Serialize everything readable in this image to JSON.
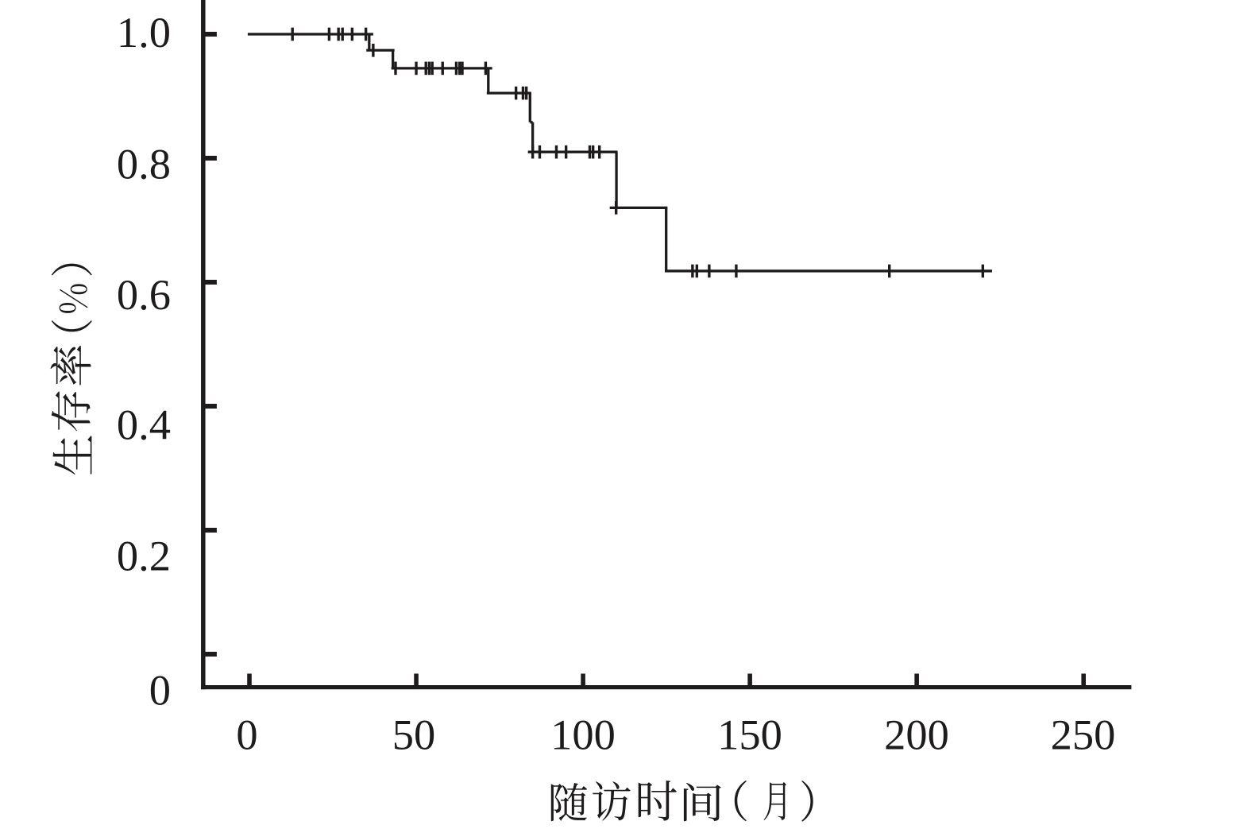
{
  "figure": {
    "background": "#ffffff",
    "ink_color": "#1e1b1c"
  },
  "chart_data": {
    "type": "line",
    "chart_style": "kaplan_meier_step_curve",
    "title": "",
    "xlabel": "随访时间（月）",
    "ylabel": "生存率（%）",
    "x_tick_labels": [
      "0",
      "50",
      "100",
      "150",
      "200",
      "250"
    ],
    "x_ticks": [
      0,
      50,
      100,
      150,
      200,
      250
    ],
    "y_tick_labels": [
      "0",
      "0.2",
      "0.4",
      "0.6",
      "0.8",
      "1.0"
    ],
    "y_ticks": [
      0,
      0.2,
      0.4,
      0.6,
      0.8,
      1.0
    ],
    "xlim": [
      -14.5,
      264.3
    ],
    "ylim": [
      -0.053,
      1.055
    ],
    "grid": false,
    "legend": null,
    "series": [
      {
        "name": "生存率",
        "steps": [
          {
            "t": 0.0,
            "s": 1.0
          },
          {
            "t": 35.9,
            "s": 0.974
          },
          {
            "t": 43.0,
            "s": 0.945
          },
          {
            "t": 71.6,
            "s": 0.905
          },
          {
            "t": 84.1,
            "s": 0.858
          },
          {
            "t": 84.9,
            "s": 0.81
          },
          {
            "t": 110.0,
            "s": 0.72
          },
          {
            "t": 124.9,
            "s": 0.618
          }
        ],
        "end_time": 222.0,
        "censors": [
          {
            "t": 12.9,
            "s": 1.0
          },
          {
            "t": 23.9,
            "s": 1.0
          },
          {
            "t": 26.7,
            "s": 1.0
          },
          {
            "t": 27.9,
            "s": 1.0
          },
          {
            "t": 30.8,
            "s": 1.0
          },
          {
            "t": 34.9,
            "s": 1.0
          },
          {
            "t": 37.1,
            "s": 0.974
          },
          {
            "t": 43.8,
            "s": 0.945
          },
          {
            "t": 50.0,
            "s": 0.945
          },
          {
            "t": 52.9,
            "s": 0.945
          },
          {
            "t": 53.9,
            "s": 0.945
          },
          {
            "t": 54.8,
            "s": 0.945
          },
          {
            "t": 57.9,
            "s": 0.945
          },
          {
            "t": 62.0,
            "s": 0.945
          },
          {
            "t": 63.0,
            "s": 0.945
          },
          {
            "t": 63.8,
            "s": 0.945
          },
          {
            "t": 70.8,
            "s": 0.945
          },
          {
            "t": 79.9,
            "s": 0.905
          },
          {
            "t": 82.0,
            "s": 0.905
          },
          {
            "t": 83.0,
            "s": 0.905
          },
          {
            "t": 84.9,
            "s": 0.81
          },
          {
            "t": 87.0,
            "s": 0.81
          },
          {
            "t": 92.0,
            "s": 0.81
          },
          {
            "t": 94.9,
            "s": 0.81
          },
          {
            "t": 102.0,
            "s": 0.81
          },
          {
            "t": 103.0,
            "s": 0.81
          },
          {
            "t": 104.9,
            "s": 0.81
          },
          {
            "t": 109.9,
            "s": 0.72
          },
          {
            "t": 132.8,
            "s": 0.618
          },
          {
            "t": 134.1,
            "s": 0.618
          },
          {
            "t": 137.8,
            "s": 0.618
          },
          {
            "t": 145.9,
            "s": 0.618
          },
          {
            "t": 191.8,
            "s": 0.618
          },
          {
            "t": 219.8,
            "s": 0.618
          }
        ]
      }
    ]
  }
}
